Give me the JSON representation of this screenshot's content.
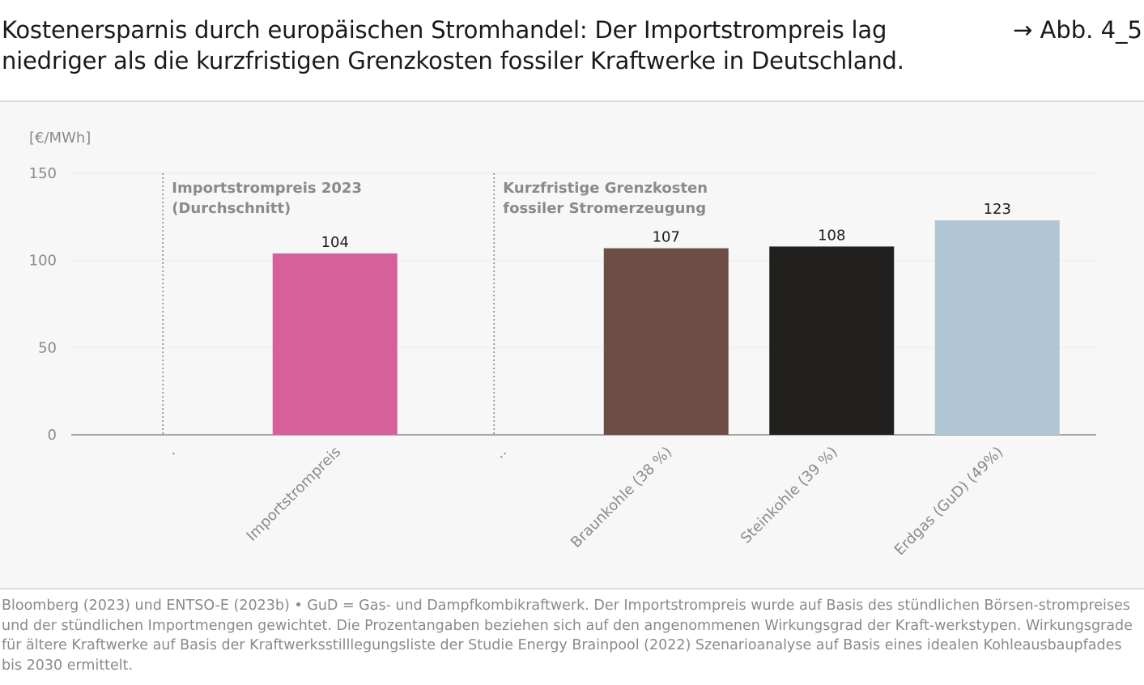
{
  "title": "Kostenersparnis durch europäischen Stromhandel: Der Importstrompreis lag niedriger als die kurzfristigen Grenzkosten fossiler Kraftwerke in Deutschland.",
  "figure_ref": "→ Abb. 4_5",
  "source_note": "Bloomberg (2023) und ENTSO-E (2023b) • GuD = Gas- und Dampfkombikraftwerk. Der Importstrompreis wurde auf Basis des stündlichen Börsen-strompreises und der stündlichen Importmengen gewichtet. Die Prozentangaben beziehen sich auf den angenommenen Wirkungsgrad der Kraft-werkstypen. Wirkungsgrade für ältere Kraftwerke auf Basis der Kraftwerksstilllegungsliste der Studie Energy Brainpool (2022) Szenarioanalyse auf Basis eines idealen Kohleausbaupfades bis 2030 ermittelt.",
  "chart_data": {
    "type": "bar",
    "ylabel": "[€/MWh]",
    "ylim": [
      0,
      150
    ],
    "yticks": [
      0,
      50,
      100,
      150
    ],
    "grid": true,
    "categories": [
      ".",
      "Importstrompreis",
      "..",
      "Braunkohle (38 %)",
      "Steinkohle (39 %)",
      "Erdgas  (GuD) (49%)"
    ],
    "values": [
      null,
      104,
      null,
      107,
      108,
      123
    ],
    "colors": [
      null,
      "#d6609a",
      null,
      "#6e4d44",
      "#21201e",
      "#b0c6d4"
    ],
    "data_labels": [
      "",
      "104",
      "",
      "107",
      "108",
      "123"
    ],
    "group_labels": [
      {
        "line1": "Importstrompreis 2023",
        "line2": "(Durchschnitt)"
      },
      {
        "line1": "Kurzfristige Grenzkosten",
        "line2": "fossiler Stromerzeugung"
      }
    ]
  }
}
